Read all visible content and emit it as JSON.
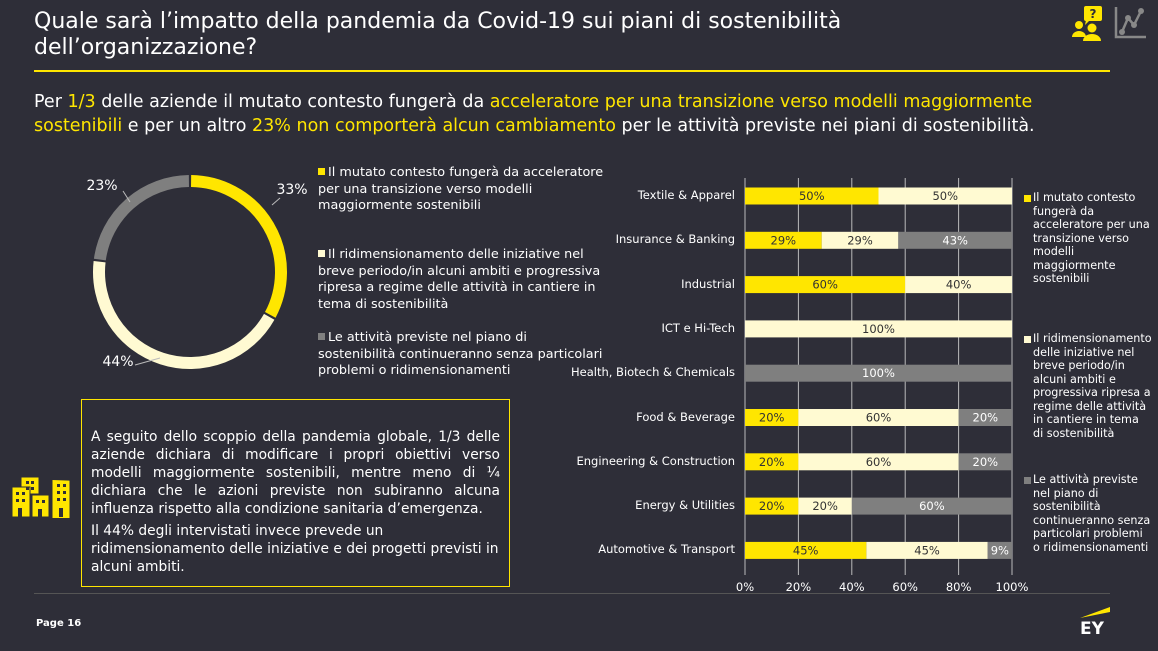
{
  "header": {
    "title": "Quale sarà l’impatto della pandemia da Covid-19 sui piani di sostenibilità dell’organizzazione?",
    "icons": [
      "people-question-icon",
      "line-chart-icon"
    ]
  },
  "subtitle": {
    "p1": "Per ",
    "h1": "1/3",
    "p2": " delle aziende il mutato contesto fungerà da ",
    "h2": "acceleratore per una transizione verso modelli maggiormente sostenibili",
    "p3": " e per un altro ",
    "h3": "23% non comporterà alcun cambiamento",
    "p4": " per le attività previste nei piani di sostenibilità."
  },
  "colors": {
    "background": "#2e2e38",
    "accent": "#ffe600",
    "cream": "#fffad2",
    "gray": "#7f7f7f"
  },
  "donut": {
    "labels": [
      "33%",
      "44%",
      "23%"
    ],
    "values": [
      33,
      44,
      23
    ]
  },
  "legend": [
    "Il mutato contesto fungerà da acceleratore per una transizione verso modelli maggiormente sostenibili",
    "Il ridimensionamento delle iniziative nel breve periodo/in alcuni ambiti e progressiva ripresa a regime delle attività in cantiere in tema di sostenibilità",
    "Le attività previste nel piano di sostenibilità continueranno senza particolari problemi o ridimensionamenti"
  ],
  "textbox": {
    "p1": "A seguito dello scoppio della pandemia globale, 1/3 delle aziende dichiara di modificare i propri obiettivi verso modelli maggiormente sostenibili, mentre meno di ¼ dichiara che le azioni previste non subiranno alcuna influenza rispetto alla condizione sanitaria d’emergenza.",
    "p2": "Il 44% degli intervistati invece prevede un ridimensionamento delle iniziative e dei progetti previsti in alcuni ambiti."
  },
  "chart_data": {
    "type": "bar",
    "orientation": "horizontal-stacked",
    "categories": [
      "Textile & Apparel",
      "Insurance & Banking",
      "Industrial",
      "ICT e Hi-Tech",
      "Health, Biotech & Chemicals",
      "Food & Beverage",
      "Engineering & Construction",
      "Energy & Utilities",
      "Automotive & Transport"
    ],
    "series": [
      {
        "values": [
          50,
          29,
          60,
          0,
          0,
          20,
          20,
          20,
          45
        ],
        "color": "#ffe600"
      },
      {
        "values": [
          50,
          29,
          40,
          100,
          0,
          60,
          60,
          20,
          45
        ],
        "color": "#fffad2"
      },
      {
        "values": [
          0,
          43,
          0,
          0,
          100,
          20,
          20,
          60,
          9
        ],
        "color": "#7f7f7f"
      }
    ],
    "xticks": [
      "0%",
      "20%",
      "40%",
      "60%",
      "80%",
      "100%"
    ],
    "xlim": [
      0,
      100
    ],
    "grid": true,
    "legend_position": "right"
  },
  "right_legend": [
    "Il mutato contesto fungerà da acceleratore per una transizione verso modelli maggiormente sostenibili",
    "Il ridimensionamento delle iniziative nel breve periodo/in alcuni ambiti e progressiva ripresa a regime delle attività in cantiere in tema di sostenibilità",
    "Le attività previste nel piano di sostenibilità continueranno senza particolari problemi o ridimensionamenti"
  ],
  "footer": {
    "page": "Page 16",
    "logo": "EY"
  }
}
